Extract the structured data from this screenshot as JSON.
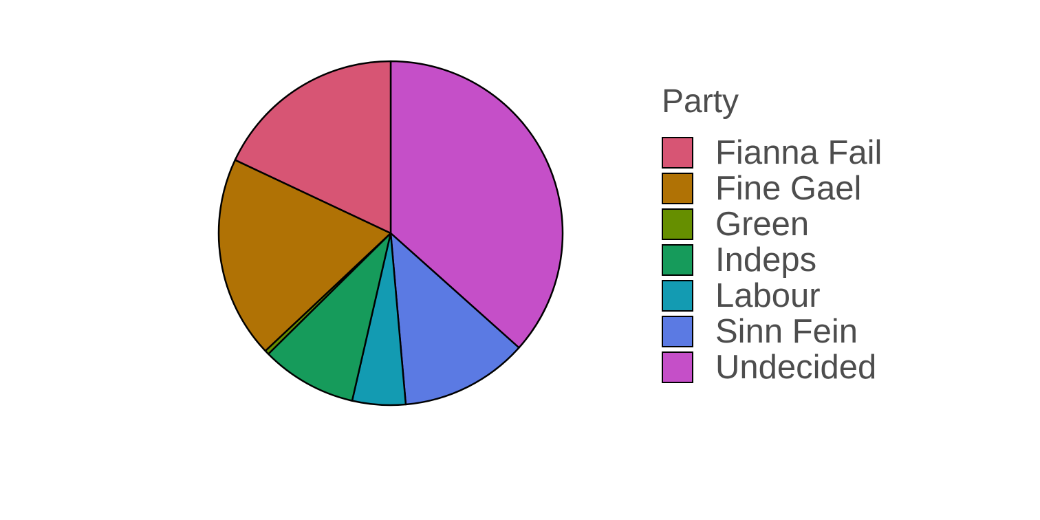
{
  "chart_data": {
    "type": "pie",
    "legend_title": "Party",
    "legend_position": "right",
    "start": "top",
    "direction": "clockwise",
    "slice_order": [
      "Undecided",
      "Sinn Fein",
      "Labour",
      "Indeps",
      "Green",
      "Fine Gael",
      "Fianna Fail"
    ],
    "slices": [
      {
        "name": "Fianna Fail",
        "value": 18,
        "color": "#D75574"
      },
      {
        "name": "Fine Gael",
        "value": 19,
        "color": "#B07205"
      },
      {
        "name": "Green",
        "value": 0.4,
        "color": "#668F00"
      },
      {
        "name": "Indeps",
        "value": 9,
        "color": "#169B5B"
      },
      {
        "name": "Labour",
        "value": 5,
        "color": "#139BB2"
      },
      {
        "name": "Sinn Fein",
        "value": 12,
        "color": "#5B7AE3"
      },
      {
        "name": "Undecided",
        "value": 36.6,
        "color": "#C54FC8"
      }
    ]
  }
}
